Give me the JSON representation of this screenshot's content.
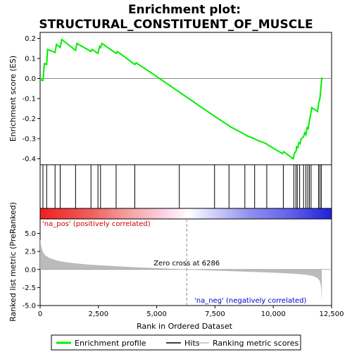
{
  "chart_data": {
    "type": "line",
    "title_line1": "Enrichment plot:",
    "title_line2": "STRUCTURAL_CONSTITUENT_OF_MUSCLE",
    "es_panel": {
      "ylabel": "Enrichment score (ES)",
      "ylim": [
        -0.43,
        0.23
      ],
      "yticks": [
        "0.2",
        "0.1",
        "0.0",
        "-0.1",
        "-0.2",
        "-0.3",
        "-0.4"
      ],
      "ytick_values": [
        0.2,
        0.1,
        0.0,
        -0.1,
        -0.2,
        -0.3,
        -0.4
      ],
      "series": [
        {
          "name": "Enrichment profile",
          "color": "#00ee00",
          "x": [
            0,
            120,
            180,
            280,
            320,
            640,
            700,
            860,
            930,
            1520,
            1580,
            2180,
            2230,
            2480,
            2550,
            2590,
            2650,
            3260,
            3310,
            4060,
            4120,
            5000,
            6000,
            7000,
            7500,
            8100,
            8150,
            8800,
            8850,
            9200,
            9250,
            9700,
            9750,
            10400,
            10450,
            10850,
            10900,
            10980,
            11000,
            11050,
            11100,
            11150,
            11200,
            11300,
            11350,
            11400,
            11450,
            11500,
            11550,
            11600,
            11650,
            11900,
            11950,
            12000,
            12030,
            12080
          ],
          "y": [
            -0.005,
            -0.01,
            0.075,
            0.07,
            0.145,
            0.13,
            0.17,
            0.155,
            0.195,
            0.14,
            0.175,
            0.135,
            0.145,
            0.125,
            0.16,
            0.155,
            0.175,
            0.125,
            0.135,
            0.07,
            0.078,
            0.01,
            -0.07,
            -0.15,
            -0.19,
            -0.235,
            -0.24,
            -0.28,
            -0.285,
            -0.3,
            -0.305,
            -0.325,
            -0.33,
            -0.375,
            -0.365,
            -0.4,
            -0.375,
            -0.36,
            -0.34,
            -0.345,
            -0.32,
            -0.325,
            -0.3,
            -0.29,
            -0.27,
            -0.28,
            -0.245,
            -0.25,
            -0.21,
            -0.18,
            -0.145,
            -0.165,
            -0.12,
            -0.1,
            -0.065,
            0.005
          ]
        }
      ]
    },
    "hits": [
      120,
      280,
      640,
      860,
      1520,
      2180,
      2480,
      2590,
      3260,
      4060,
      5970,
      7480,
      8100,
      8780,
      9200,
      9720,
      10430,
      10880,
      10970,
      11030,
      11130,
      11300,
      11400,
      11480,
      11550,
      11620,
      11940,
      12000,
      12060
    ],
    "rank_panel": {
      "ylabel": "Ranked list metric (PreRanked)",
      "ylim": [
        -5,
        7
      ],
      "yticks": [
        "5.0",
        "2.5",
        "0.0",
        "-2.5",
        "-5.0"
      ],
      "ytick_values": [
        5.0,
        2.5,
        0.0,
        -2.5,
        -5.0
      ],
      "metric_x": [
        0,
        50,
        100,
        200,
        400,
        700,
        1000,
        1500,
        2000,
        3000,
        4000,
        5000,
        6286,
        7000,
        8000,
        9000,
        10000,
        10500,
        11000,
        11400,
        11700,
        11900,
        12000,
        12050,
        12080
      ],
      "metric_y": [
        4.2,
        3.2,
        2.6,
        2.0,
        1.6,
        1.25,
        1.05,
        0.85,
        0.7,
        0.5,
        0.32,
        0.18,
        0.0,
        -0.1,
        -0.22,
        -0.33,
        -0.45,
        -0.52,
        -0.62,
        -0.75,
        -0.9,
        -1.2,
        -1.6,
        -2.5,
        -4.6
      ],
      "zero_cross_label": "Zero cross at 6286",
      "zero_cross_x": 6286,
      "pos_label": "'na_pos' (positively correlated)",
      "neg_label": "'na_neg' (negatively correlated)"
    },
    "x_axis": {
      "xlabel": "Rank in Ordered Dataset",
      "xlim": [
        0,
        12500
      ],
      "xticks": [
        "0",
        "2,500",
        "5,000",
        "7,500",
        "10,000",
        "12,500"
      ],
      "xtick_values": [
        0,
        2500,
        5000,
        7500,
        10000,
        12500
      ]
    },
    "legend": {
      "items": [
        {
          "label": "Enrichment profile",
          "color": "#00ee00"
        },
        {
          "label": "Hits",
          "color": "#000000"
        },
        {
          "label": "Ranking metric scores",
          "color": "#bbbbbb"
        }
      ]
    },
    "colors": {
      "pos_text": "#cc0000",
      "neg_text": "#0000cc",
      "heat_red_dark": "#ee2222",
      "heat_blue_dark": "#2222dd"
    }
  }
}
